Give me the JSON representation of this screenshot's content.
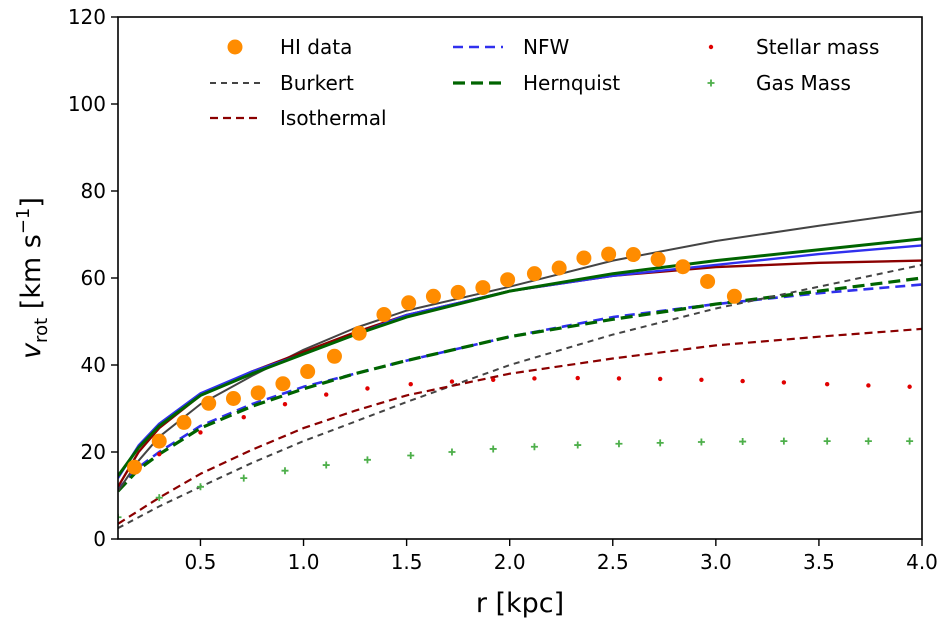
{
  "chart_data": {
    "type": "line",
    "xlabel": "r [kpc]",
    "ylabel": {
      "main": "v",
      "sub": "rot",
      "units": " [km s",
      "sup": "−1",
      "close": "]"
    },
    "xlim": [
      0.1,
      4.0
    ],
    "ylim": [
      0,
      120
    ],
    "xticks": [
      0.5,
      1.0,
      1.5,
      2.0,
      2.5,
      3.0,
      3.5,
      4.0
    ],
    "xtick_labels": [
      "0.5",
      "1.0",
      "1.5",
      "2.0",
      "2.5",
      "3.0",
      "3.5",
      "4.0"
    ],
    "yticks": [
      0,
      20,
      40,
      60,
      80,
      100,
      120
    ],
    "ytick_labels": [
      "0",
      "20",
      "40",
      "60",
      "80",
      "100",
      "120"
    ],
    "grid": false,
    "legend_placement": "top",
    "legend": [
      {
        "label": "HI data",
        "style": "orange-circle"
      },
      {
        "label": "NFW",
        "style": "blue-dashed"
      },
      {
        "label": "Stellar mass",
        "style": "red-dot"
      },
      {
        "label": "Burkert",
        "style": "gray-dashed"
      },
      {
        "label": "Hernquist",
        "style": "green-dashed"
      },
      {
        "label": "Gas Mass",
        "style": "green-plus"
      },
      {
        "label": "Isothermal",
        "style": "darkred-dashed"
      }
    ],
    "colors": {
      "hi": "#ff8c00",
      "nfw": "#3030ee",
      "burkert": "#444444",
      "hernquist": "#006400",
      "isothermal": "#8b0000",
      "stellar": "#e00000",
      "gas": "#4daf4a"
    },
    "series": [
      {
        "name": "HI data",
        "kind": "scatter",
        "marker": "circle",
        "color": "#ff8c00",
        "x": [
          0.18,
          0.3,
          0.42,
          0.54,
          0.66,
          0.78,
          0.9,
          1.02,
          1.15,
          1.27,
          1.39,
          1.51,
          1.63,
          1.75,
          1.87,
          1.99,
          2.12,
          2.24,
          2.36,
          2.48,
          2.6,
          2.72,
          2.84,
          2.96,
          3.09
        ],
        "y": [
          16.5,
          22.5,
          26.8,
          31.2,
          32.3,
          33.6,
          35.7,
          38.5,
          42.0,
          47.3,
          51.6,
          54.3,
          55.8,
          56.7,
          57.8,
          59.6,
          61.0,
          62.3,
          64.6,
          65.5,
          65.4,
          64.3,
          62.6,
          59.2,
          55.8
        ]
      },
      {
        "name": "Stellar mass",
        "kind": "scatter",
        "marker": "dot",
        "color": "#e00000",
        "x": [
          0.3,
          0.5,
          0.71,
          0.91,
          1.11,
          1.31,
          1.52,
          1.72,
          1.92,
          2.12,
          2.33,
          2.53,
          2.73,
          2.93,
          3.13,
          3.33,
          3.54,
          3.74,
          3.94
        ],
        "y": [
          19.5,
          24.5,
          28.0,
          31.0,
          33.2,
          34.6,
          35.6,
          36.2,
          36.6,
          36.9,
          37.0,
          36.9,
          36.8,
          36.6,
          36.3,
          36.0,
          35.6,
          35.3,
          35.0
        ]
      },
      {
        "name": "Gas Mass",
        "kind": "scatter",
        "marker": "plus",
        "color": "#4daf4a",
        "x": [
          0.1,
          0.3,
          0.5,
          0.71,
          0.91,
          1.11,
          1.31,
          1.52,
          1.72,
          1.92,
          2.12,
          2.33,
          2.53,
          2.73,
          2.93,
          3.13,
          3.33,
          3.54,
          3.74,
          3.94
        ],
        "y": [
          5.0,
          9.5,
          12.0,
          14.0,
          15.7,
          17.0,
          18.2,
          19.2,
          20.0,
          20.7,
          21.2,
          21.6,
          21.9,
          22.1,
          22.3,
          22.4,
          22.5,
          22.5,
          22.5,
          22.5
        ]
      },
      {
        "name": "NFW",
        "kind": "line",
        "dash": "10,6",
        "color": "#3030ee",
        "width": 2.6,
        "x": [
          0.1,
          0.2,
          0.3,
          0.5,
          0.75,
          1.0,
          1.25,
          1.5,
          2.0,
          2.5,
          3.0,
          3.5,
          4.0
        ],
        "y": [
          11.5,
          16.5,
          20.0,
          26.0,
          31.0,
          35.0,
          38.0,
          41.0,
          46.5,
          51.0,
          54.0,
          56.5,
          58.5
        ]
      },
      {
        "name": "Hernquist",
        "kind": "line",
        "dash": "12,6",
        "color": "#006400",
        "width": 3.2,
        "x": [
          0.1,
          0.2,
          0.3,
          0.5,
          0.75,
          1.0,
          1.25,
          1.5,
          2.0,
          2.5,
          3.0,
          3.5,
          4.0
        ],
        "y": [
          11.0,
          16.0,
          19.5,
          25.5,
          30.5,
          34.5,
          38.0,
          41.0,
          46.5,
          50.5,
          54.0,
          57.0,
          60.0
        ]
      },
      {
        "name": "Burkert",
        "kind": "line",
        "dash": "6,5",
        "color": "#444444",
        "width": 2.0,
        "x": [
          0.1,
          0.3,
          0.5,
          0.75,
          1.0,
          1.25,
          1.5,
          2.0,
          2.5,
          3.0,
          3.5,
          4.0
        ],
        "y": [
          2.5,
          7.5,
          12.0,
          17.5,
          22.5,
          27.0,
          31.5,
          40.0,
          47.0,
          53.0,
          58.0,
          63.0
        ]
      },
      {
        "name": "Isothermal",
        "kind": "line",
        "dash": "8,5",
        "color": "#8b0000",
        "width": 2.2,
        "x": [
          0.1,
          0.3,
          0.5,
          0.75,
          1.0,
          1.25,
          1.5,
          2.0,
          2.5,
          3.0,
          3.5,
          4.0
        ],
        "y": [
          3.5,
          9.5,
          15.0,
          20.5,
          25.5,
          29.5,
          33.0,
          38.0,
          41.5,
          44.5,
          46.5,
          48.3
        ]
      },
      {
        "name": "",
        "kind": "line",
        "dash": "",
        "color": "#444444",
        "width": 2.0,
        "x": [
          0.1,
          0.2,
          0.3,
          0.5,
          0.75,
          1.0,
          1.25,
          1.5,
          2.0,
          2.5,
          3.0,
          3.5,
          4.0
        ],
        "y": [
          11.0,
          18.0,
          23.5,
          31.0,
          37.5,
          43.5,
          48.5,
          52.5,
          58.0,
          64.0,
          68.5,
          72.0,
          75.3
        ]
      },
      {
        "name": "",
        "kind": "line",
        "dash": "",
        "color": "#8b0000",
        "width": 2.4,
        "x": [
          0.1,
          0.2,
          0.3,
          0.5,
          0.75,
          1.0,
          1.25,
          1.5,
          2.0,
          2.5,
          3.0,
          3.5,
          4.0
        ],
        "y": [
          12.0,
          20.0,
          25.5,
          33.0,
          38.5,
          43.0,
          47.5,
          51.5,
          57.0,
          60.5,
          62.5,
          63.5,
          64.0
        ]
      },
      {
        "name": "",
        "kind": "line",
        "dash": "",
        "color": "#3030ee",
        "width": 2.4,
        "x": [
          0.1,
          0.2,
          0.3,
          0.5,
          0.75,
          1.0,
          1.25,
          1.5,
          2.0,
          2.5,
          3.0,
          3.5,
          4.0
        ],
        "y": [
          14.0,
          21.5,
          26.5,
          33.5,
          38.5,
          42.5,
          47.0,
          51.5,
          57.0,
          60.5,
          63.0,
          65.5,
          67.5
        ]
      },
      {
        "name": "",
        "kind": "line",
        "dash": "",
        "color": "#006400",
        "width": 3.0,
        "x": [
          0.1,
          0.2,
          0.3,
          0.5,
          0.75,
          1.0,
          1.25,
          1.5,
          2.0,
          2.5,
          3.0,
          3.5,
          4.0
        ],
        "y": [
          14.5,
          21.0,
          26.0,
          33.0,
          38.0,
          42.5,
          47.0,
          51.0,
          57.0,
          61.0,
          64.0,
          66.5,
          69.0
        ]
      }
    ]
  }
}
